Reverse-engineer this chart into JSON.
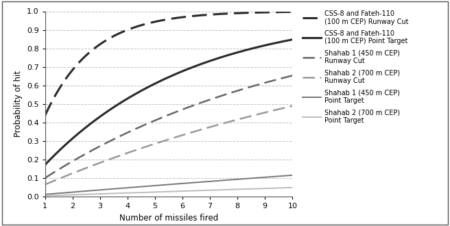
{
  "title": "",
  "xlabel": "Number of missiles fired",
  "ylabel": "Probability of hit",
  "xlim": [
    1,
    10
  ],
  "ylim": [
    0,
    1.0
  ],
  "xticks": [
    1,
    2,
    3,
    4,
    5,
    6,
    7,
    8,
    9,
    10
  ],
  "yticks": [
    0,
    0.1,
    0.2,
    0.3,
    0.4,
    0.5,
    0.6,
    0.7,
    0.8,
    0.9,
    1.0
  ],
  "series": [
    {
      "label": "CSS-8 and Fateh-110\n(100 m CEP) Runway Cut",
      "p_single": 0.4375,
      "color": "#2b2b2b",
      "linestyle": "dashed",
      "linewidth": 2.2,
      "dashes": [
        7,
        3
      ]
    },
    {
      "label": "CSS-8 and Fateh-110\n(100 m CEP) Point Target",
      "p_single": 0.1716,
      "color": "#2b2b2b",
      "linestyle": "solid",
      "linewidth": 2.2,
      "dashes": null
    },
    {
      "label": "Shahab 1 (450 m CEP)\nRunway Cut",
      "p_single": 0.1005,
      "color": "#666666",
      "linestyle": "dashed",
      "linewidth": 1.8,
      "dashes": [
        7,
        3
      ]
    },
    {
      "label": "Shahab 2 (700 m CEP)\nRunway Cut",
      "p_single": 0.065,
      "color": "#999999",
      "linestyle": "dashed",
      "linewidth": 1.8,
      "dashes": [
        7,
        3
      ]
    },
    {
      "label": "Shahab 1 (450 m CEP)\nPoint Target",
      "p_single": 0.0122,
      "color": "#777777",
      "linestyle": "solid",
      "linewidth": 1.4,
      "dashes": null
    },
    {
      "label": "Shahab 2 (700 m CEP)\nPoint Target",
      "p_single": 0.005,
      "color": "#bbbbbb",
      "linestyle": "solid",
      "linewidth": 1.4,
      "dashes": null
    }
  ],
  "background_color": "#ffffff",
  "grid_color": "#c0c0c0",
  "legend_fontsize": 7.0,
  "axis_label_fontsize": 8.5,
  "tick_fontsize": 8.0,
  "fig_width": 6.56,
  "fig_height": 3.3,
  "dpi": 100
}
